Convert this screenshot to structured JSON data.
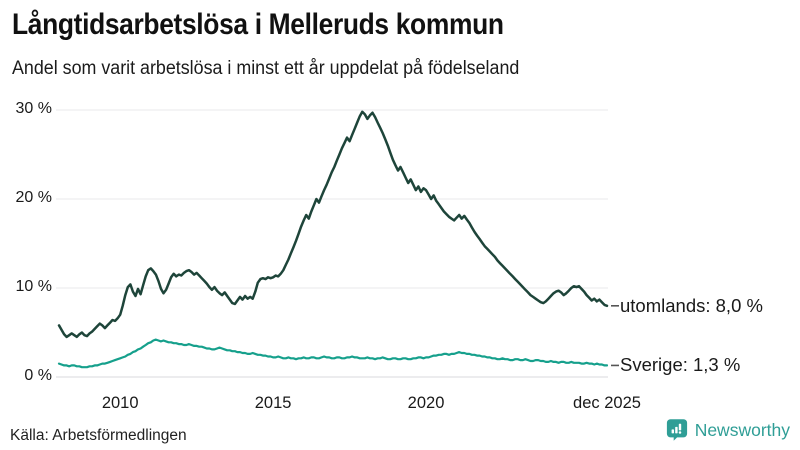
{
  "header": {
    "title": "Långtidsarbetslösa i Melleruds kommun",
    "subtitle": "Andel som varit arbetslösa i minst ett år uppdelat på födelseland"
  },
  "footer": {
    "source": "Källa: Arbetsförmedlingen",
    "brand": "Newsworthy"
  },
  "colors": {
    "grid": "#e8e8eb",
    "grid_zero": "#d8d8dc",
    "connector": "#555555",
    "brand_teal": "#2f9e96",
    "text": "#1a1a1a"
  },
  "chart_data": {
    "type": "line",
    "title": "Långtidsarbetslösa i Melleruds kommun",
    "subtitle": "Andel som varit arbetslösa i minst ett år uppdelat på födelseland",
    "x_unit": "decimal_year_monthly",
    "x_start": 2008.0,
    "x_step_months": 1,
    "x_domain": [
      2008.0,
      2025.9167
    ],
    "y_domain": [
      0,
      30
    ],
    "grid": true,
    "legend_position": "right-end-labels",
    "y_ticks": [
      {
        "value": 0,
        "label": "0 %"
      },
      {
        "value": 10,
        "label": "10 %"
      },
      {
        "value": 20,
        "label": "20 %"
      },
      {
        "value": 30,
        "label": "30 %"
      }
    ],
    "x_ticks": [
      {
        "value": 2010,
        "label": "2010"
      },
      {
        "value": 2015,
        "label": "2015"
      },
      {
        "value": 2020,
        "label": "2020"
      },
      {
        "value": 2025.9167,
        "label": "dec 2025"
      }
    ],
    "series": [
      {
        "name": "utomlands",
        "end_label": "utomlands: 8,0 %",
        "end_value_label": "8,0 %",
        "color": "#1e453a",
        "stroke_width": 2.5,
        "values": [
          5.8,
          5.3,
          4.8,
          4.5,
          4.7,
          4.9,
          4.7,
          4.5,
          4.8,
          5.0,
          4.7,
          4.6,
          4.9,
          5.1,
          5.4,
          5.7,
          6.0,
          5.8,
          5.5,
          5.8,
          6.1,
          6.4,
          6.3,
          6.6,
          7.0,
          8.0,
          9.2,
          10.1,
          10.4,
          9.6,
          9.1,
          9.9,
          9.3,
          10.3,
          11.3,
          12.0,
          12.2,
          11.9,
          11.5,
          10.8,
          9.9,
          9.4,
          9.8,
          10.5,
          11.2,
          11.6,
          11.3,
          11.5,
          11.4,
          11.7,
          11.9,
          12.0,
          11.8,
          11.5,
          11.7,
          11.4,
          11.1,
          10.8,
          10.5,
          10.1,
          9.8,
          10.1,
          9.7,
          9.4,
          9.2,
          9.5,
          9.1,
          8.7,
          8.3,
          8.2,
          8.6,
          9.0,
          8.7,
          9.1,
          8.8,
          9.0,
          8.8,
          9.6,
          10.6,
          11.0,
          11.1,
          11.0,
          11.2,
          11.1,
          11.2,
          11.4,
          11.3,
          11.6,
          12.0,
          12.6,
          13.2,
          13.9,
          14.6,
          15.3,
          16.1,
          16.9,
          17.6,
          18.2,
          17.8,
          18.6,
          19.3,
          20.0,
          19.6,
          20.3,
          21.0,
          21.6,
          22.3,
          23.0,
          23.6,
          24.3,
          25.0,
          25.7,
          26.3,
          26.9,
          26.5,
          27.2,
          27.9,
          28.6,
          29.3,
          29.8,
          29.5,
          29.0,
          29.4,
          29.7,
          29.2,
          28.6,
          28.0,
          27.4,
          26.7,
          26.0,
          25.2,
          24.4,
          23.8,
          23.2,
          23.6,
          23.0,
          22.4,
          21.8,
          22.2,
          21.6,
          21.0,
          21.4,
          20.8,
          21.2,
          21.0,
          20.5,
          20.0,
          20.4,
          19.8,
          19.4,
          19.0,
          18.6,
          18.3,
          18.0,
          17.8,
          17.6,
          17.9,
          18.2,
          17.8,
          18.1,
          17.7,
          17.3,
          16.8,
          16.3,
          15.9,
          15.5,
          15.1,
          14.7,
          14.4,
          14.1,
          13.8,
          13.5,
          13.1,
          12.8,
          12.5,
          12.2,
          11.9,
          11.6,
          11.3,
          11.0,
          10.7,
          10.4,
          10.1,
          9.8,
          9.5,
          9.2,
          9.0,
          8.8,
          8.6,
          8.4,
          8.3,
          8.5,
          8.8,
          9.1,
          9.4,
          9.6,
          9.7,
          9.5,
          9.2,
          9.4,
          9.7,
          10.0,
          10.2,
          10.1,
          10.2,
          9.9,
          9.6,
          9.2,
          8.9,
          8.6,
          8.8,
          8.5,
          8.7,
          8.4,
          8.1,
          8.0
        ]
      },
      {
        "name": "Sverige",
        "end_label": "Sverige: 1,3 %",
        "end_value_label": "1,3 %",
        "color": "#16a08c",
        "stroke_width": 2.2,
        "values": [
          1.5,
          1.4,
          1.3,
          1.3,
          1.2,
          1.3,
          1.3,
          1.2,
          1.2,
          1.1,
          1.1,
          1.1,
          1.2,
          1.2,
          1.3,
          1.3,
          1.4,
          1.5,
          1.5,
          1.6,
          1.7,
          1.8,
          1.9,
          2.0,
          2.1,
          2.2,
          2.3,
          2.5,
          2.6,
          2.8,
          2.9,
          3.1,
          3.2,
          3.4,
          3.6,
          3.8,
          3.9,
          4.1,
          4.2,
          4.1,
          4.0,
          4.1,
          4.0,
          3.9,
          3.9,
          3.8,
          3.8,
          3.7,
          3.7,
          3.6,
          3.6,
          3.7,
          3.6,
          3.5,
          3.5,
          3.4,
          3.4,
          3.3,
          3.2,
          3.2,
          3.1,
          3.1,
          3.2,
          3.3,
          3.2,
          3.1,
          3.0,
          3.0,
          2.9,
          2.9,
          2.8,
          2.8,
          2.7,
          2.7,
          2.6,
          2.6,
          2.7,
          2.6,
          2.5,
          2.5,
          2.4,
          2.4,
          2.3,
          2.3,
          2.2,
          2.2,
          2.3,
          2.2,
          2.1,
          2.1,
          2.2,
          2.1,
          2.1,
          2.0,
          2.1,
          2.1,
          2.2,
          2.1,
          2.1,
          2.2,
          2.2,
          2.1,
          2.1,
          2.2,
          2.3,
          2.2,
          2.2,
          2.1,
          2.1,
          2.2,
          2.2,
          2.1,
          2.1,
          2.2,
          2.2,
          2.3,
          2.2,
          2.2,
          2.1,
          2.1,
          2.1,
          2.2,
          2.1,
          2.1,
          2.0,
          2.1,
          2.1,
          2.2,
          2.1,
          2.0,
          2.0,
          2.1,
          2.1,
          2.0,
          2.0,
          2.1,
          2.1,
          2.0,
          2.0,
          2.1,
          2.1,
          2.2,
          2.2,
          2.1,
          2.2,
          2.2,
          2.3,
          2.4,
          2.4,
          2.5,
          2.5,
          2.6,
          2.6,
          2.5,
          2.6,
          2.6,
          2.7,
          2.8,
          2.7,
          2.7,
          2.6,
          2.6,
          2.5,
          2.5,
          2.4,
          2.4,
          2.3,
          2.3,
          2.2,
          2.2,
          2.1,
          2.1,
          2.0,
          2.0,
          2.1,
          2.0,
          2.0,
          1.9,
          1.9,
          2.0,
          2.0,
          1.9,
          1.9,
          2.0,
          1.9,
          1.8,
          1.8,
          1.9,
          1.9,
          1.8,
          1.8,
          1.7,
          1.7,
          1.8,
          1.7,
          1.7,
          1.6,
          1.7,
          1.7,
          1.6,
          1.6,
          1.7,
          1.6,
          1.6,
          1.6,
          1.5,
          1.5,
          1.6,
          1.5,
          1.5,
          1.4,
          1.5,
          1.4,
          1.4,
          1.3,
          1.3
        ]
      }
    ]
  }
}
